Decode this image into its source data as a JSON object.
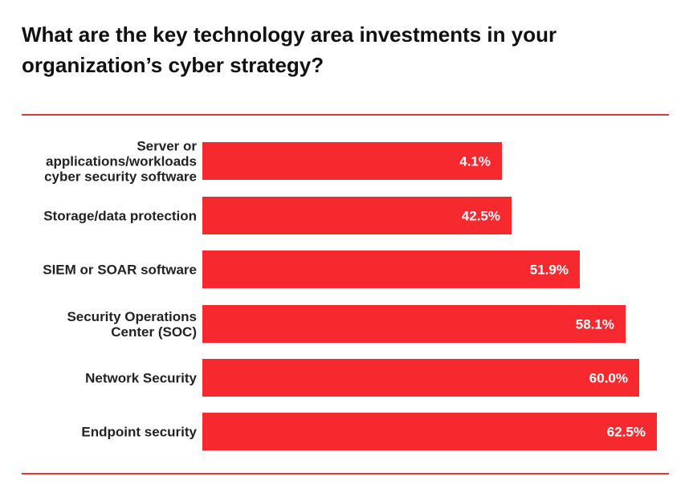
{
  "chart_data": {
    "type": "bar",
    "orientation": "horizontal",
    "title": "What are the key technology area investments in your organization’s cyber strategy?",
    "categories": [
      [
        "Server or",
        "applications/workloads",
        "cyber security software"
      ],
      [
        "Storage/data protection"
      ],
      [
        "SIEM or SOAR software"
      ],
      [
        "Security Operations",
        "Center (SOC)"
      ],
      [
        "Network Security"
      ],
      [
        "Endpoint security"
      ]
    ],
    "values": [
      4.1,
      42.5,
      51.9,
      58.1,
      60.0,
      62.5
    ],
    "value_labels": [
      "4.1%",
      "42.5%",
      "51.9%",
      "58.1%",
      "60.0%",
      "62.5%"
    ],
    "bar_color": "#f6292e",
    "rule_color": "#e8353a",
    "grid": false,
    "legend": "none"
  }
}
